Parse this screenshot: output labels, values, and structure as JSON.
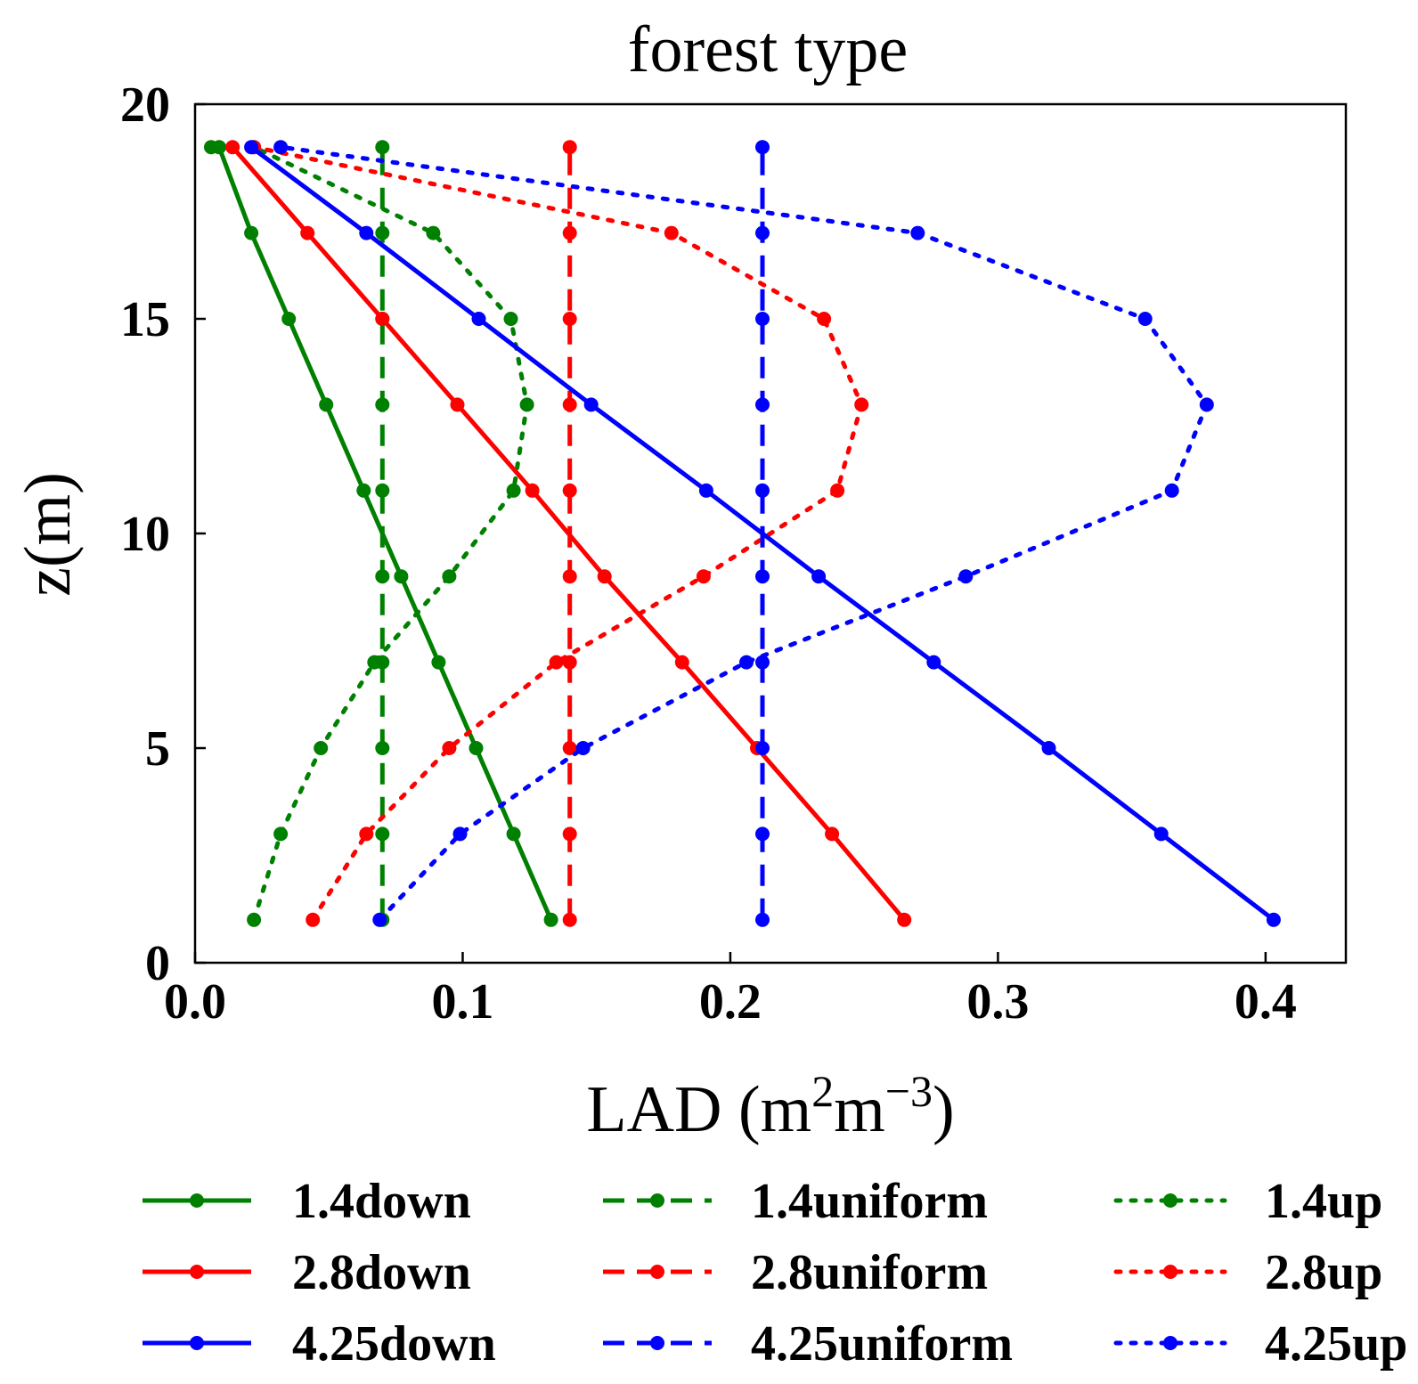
{
  "chart_data": {
    "type": "line",
    "title": "forest type",
    "xlabel": "LAD (m",
    "xlabel_sup1": "2",
    "xlabel_mid": "m",
    "xlabel_sup2": "−3",
    "xlabel_end": ")",
    "ylabel": "z(m)",
    "xlim": [
      0.0,
      0.43
    ],
    "ylim": [
      0,
      20
    ],
    "xticks": [
      0.0,
      0.1,
      0.2,
      0.3,
      0.4
    ],
    "xtick_labels": [
      "0.0",
      "0.1",
      "0.2",
      "0.3",
      "0.4"
    ],
    "yticks": [
      0,
      5,
      10,
      15,
      20
    ],
    "ytick_labels": [
      "0",
      "5",
      "10",
      "15",
      "20"
    ],
    "grid": false,
    "legend_position": "bottom",
    "series": [
      {
        "name": "1.4down",
        "color": "#008000",
        "style": "solid",
        "x": [
          0.133,
          0.119,
          0.105,
          0.091,
          0.077,
          0.063,
          0.049,
          0.035,
          0.021,
          0.009,
          0.006
        ],
        "y": [
          1,
          3,
          5,
          7,
          9,
          11,
          13,
          15,
          17,
          19,
          19
        ]
      },
      {
        "name": "1.4uniform",
        "color": "#008000",
        "style": "dashed",
        "x": [
          0.07,
          0.07,
          0.07,
          0.07,
          0.07,
          0.07,
          0.07,
          0.07,
          0.07,
          0.07
        ],
        "y": [
          1,
          3,
          5,
          7,
          9,
          11,
          13,
          15,
          17,
          19
        ]
      },
      {
        "name": "1.4up",
        "color": "#008000",
        "style": "dotted",
        "x": [
          0.022,
          0.032,
          0.047,
          0.067,
          0.095,
          0.119,
          0.124,
          0.118,
          0.089,
          0.022
        ],
        "y": [
          1,
          3,
          5,
          7,
          9,
          11,
          13,
          15,
          17,
          19
        ]
      },
      {
        "name": "2.8down",
        "color": "#ff0000",
        "style": "solid",
        "x": [
          0.265,
          0.238,
          0.21,
          0.182,
          0.153,
          0.126,
          0.098,
          0.07,
          0.042,
          0.014
        ],
        "y": [
          1,
          3,
          5,
          7,
          9,
          11,
          13,
          15,
          17,
          19
        ]
      },
      {
        "name": "2.8uniform",
        "color": "#ff0000",
        "style": "dashed",
        "x": [
          0.14,
          0.14,
          0.14,
          0.14,
          0.14,
          0.14,
          0.14,
          0.14,
          0.14,
          0.14
        ],
        "y": [
          1,
          3,
          5,
          7,
          9,
          11,
          13,
          15,
          17,
          19
        ]
      },
      {
        "name": "2.8up",
        "color": "#ff0000",
        "style": "dotted",
        "x": [
          0.044,
          0.064,
          0.095,
          0.135,
          0.19,
          0.24,
          0.249,
          0.235,
          0.178,
          0.022
        ],
        "y": [
          1,
          3,
          5,
          7,
          9,
          11,
          13,
          15,
          17,
          19
        ]
      },
      {
        "name": "4.25down",
        "color": "#0000ff",
        "style": "solid",
        "x": [
          0.403,
          0.361,
          0.319,
          0.276,
          0.233,
          0.191,
          0.148,
          0.106,
          0.064,
          0.021
        ],
        "y": [
          1,
          3,
          5,
          7,
          9,
          11,
          13,
          15,
          17,
          19
        ]
      },
      {
        "name": "4.25uniform",
        "color": "#0000ff",
        "style": "dashed",
        "x": [
          0.212,
          0.212,
          0.212,
          0.212,
          0.212,
          0.212,
          0.212,
          0.212,
          0.212,
          0.212
        ],
        "y": [
          1,
          3,
          5,
          7,
          9,
          11,
          13,
          15,
          17,
          19
        ]
      },
      {
        "name": "4.25up",
        "color": "#0000ff",
        "style": "dotted",
        "x": [
          0.069,
          0.099,
          0.145,
          0.206,
          0.288,
          0.365,
          0.378,
          0.355,
          0.27,
          0.032
        ],
        "y": [
          1,
          3,
          5,
          7,
          9,
          11,
          13,
          15,
          17,
          19
        ]
      }
    ]
  }
}
